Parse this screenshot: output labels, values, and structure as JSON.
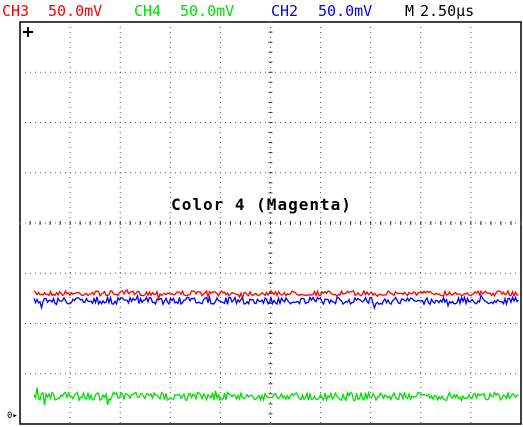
{
  "status": {
    "ch3": {
      "name": "CH3",
      "scale": "50.0mV",
      "color": "#ff0000"
    },
    "ch4": {
      "name": "CH4",
      "scale": "50.0mV",
      "color": "#00dd00"
    },
    "ch2": {
      "name": "CH2",
      "scale": "50.0mV",
      "color": "#0000ff"
    },
    "timebase": {
      "name": "M",
      "value": "2.50µs",
      "color": "#000000"
    }
  },
  "overlay_text": "Color 4 (Magenta)",
  "ground_marker_label": "0",
  "traces": [
    {
      "channel": "CH3",
      "color": "#ff0000",
      "level_div": -1.4,
      "noise_div": 0.05
    },
    {
      "channel": "CH2",
      "color": "#0000ff",
      "level_div": -1.55,
      "noise_div": 0.07
    },
    {
      "channel": "CH4",
      "color": "#00dd00",
      "level_div": -3.45,
      "noise_div": 0.08
    }
  ],
  "grid": {
    "h_divisions": 10,
    "v_divisions": 8,
    "minor_ticks_per_div": 5,
    "grid_color": "#555555"
  }
}
